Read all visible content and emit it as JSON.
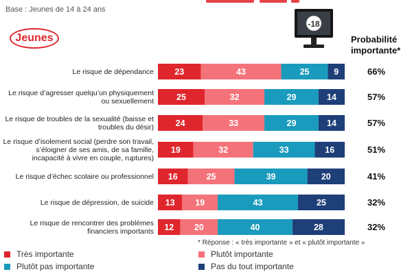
{
  "header": {
    "base": "Base : Jeunes de 14 à 24 ans",
    "logo": "Jeunes",
    "monitor_label": "-18",
    "prob_line1": "Probabilité",
    "prob_line2": "importante*"
  },
  "footnote": "* Réponse : « très importante » et « plutôt importante »",
  "colors": {
    "tres_importante": "#e0262d",
    "plutot_importante": "#f4737a",
    "plutot_pas_importante": "#1a9bbd",
    "pas_du_tout_importante": "#1e3f78"
  },
  "chart_data": {
    "type": "bar",
    "orientation": "horizontal",
    "stacked": true,
    "categories": [
      "Le risque de dépendance",
      "Le risque d’agresser quelqu’un physiquement ou sexuellement",
      "Le risque de troubles de la sexualité (baisse et troubles du désir)",
      "Le risque d’isolement social (perdre son travail, s’éloigner de ses amis, de sa famille, incapacité à vivre en couple, ruptures)",
      "Le risque d’échec scolaire ou professionnel",
      "Le risque de dépression, de suicide",
      "Le risque de rencontrer des problèmes financiers importants"
    ],
    "category_lines": [
      [
        "Le risque de dépendance"
      ],
      [
        "Le risque d’agresser quelqu’un physiquement",
        "ou sexuellement"
      ],
      [
        "Le risque de troubles de la sexualité (baisse et",
        "troubles du désir)"
      ],
      [
        "Le risque d’isolement social (perdre son travail,",
        "s’éloigner de ses amis, de sa famille,",
        "incapacité à vivre en couple, ruptures)"
      ],
      [
        "Le risque d’échec scolaire ou professionnel"
      ],
      [
        "Le risque de dépression, de suicide"
      ],
      [
        "Le risque de rencontrer des problèmes",
        "financiers importants"
      ]
    ],
    "series": [
      {
        "name": "Très importante",
        "color": "#e0262d",
        "values": [
          23,
          25,
          24,
          19,
          16,
          13,
          12
        ]
      },
      {
        "name": "Plutôt importante",
        "color": "#f4737a",
        "values": [
          43,
          32,
          33,
          32,
          25,
          19,
          20
        ]
      },
      {
        "name": "Plutôt pas importante",
        "color": "#1a9bbd",
        "values": [
          25,
          29,
          29,
          33,
          39,
          43,
          40
        ]
      },
      {
        "name": "Pas du tout importante",
        "color": "#1e3f78",
        "values": [
          9,
          14,
          14,
          16,
          20,
          25,
          28
        ]
      }
    ],
    "probabilite_importante": [
      "66%",
      "57%",
      "57%",
      "51%",
      "41%",
      "32%",
      "32%"
    ],
    "xlim": [
      0,
      100
    ]
  }
}
